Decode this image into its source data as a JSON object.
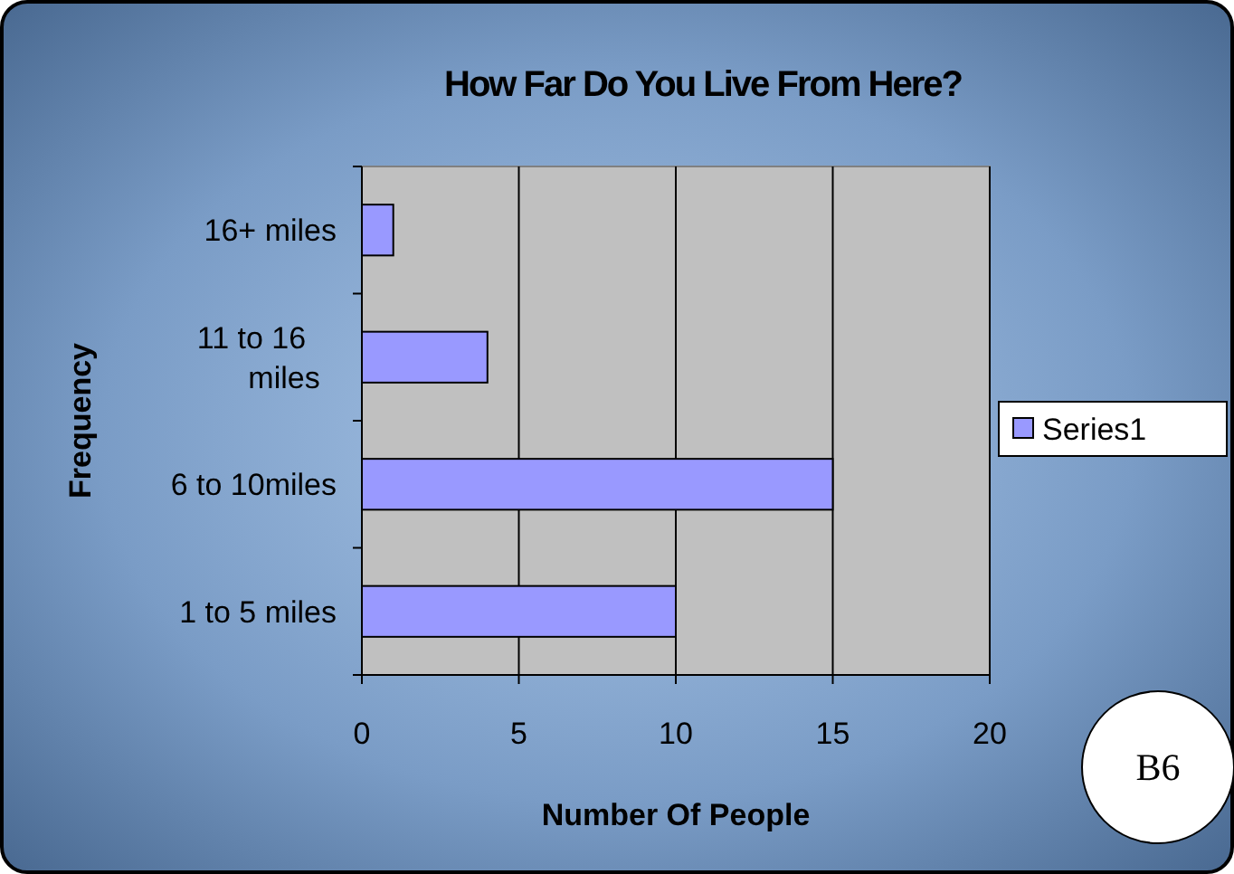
{
  "chart_data": {
    "type": "bar",
    "orientation": "horizontal",
    "title": "How Far Do You Live From Here?",
    "xlabel": "Number Of People",
    "ylabel": "Frequency",
    "categories": [
      "16+ miles",
      "11 to 16 miles",
      "6 to 10miles",
      "1 to 5 miles"
    ],
    "series": [
      {
        "name": "Series1",
        "color": "#9999ff",
        "values": [
          1,
          4,
          15,
          10
        ]
      }
    ],
    "xlim": [
      0,
      20
    ],
    "xticks": [
      0,
      5,
      10,
      15,
      20
    ],
    "grid": "x",
    "legend": "right",
    "annotations": [
      "B6"
    ]
  }
}
